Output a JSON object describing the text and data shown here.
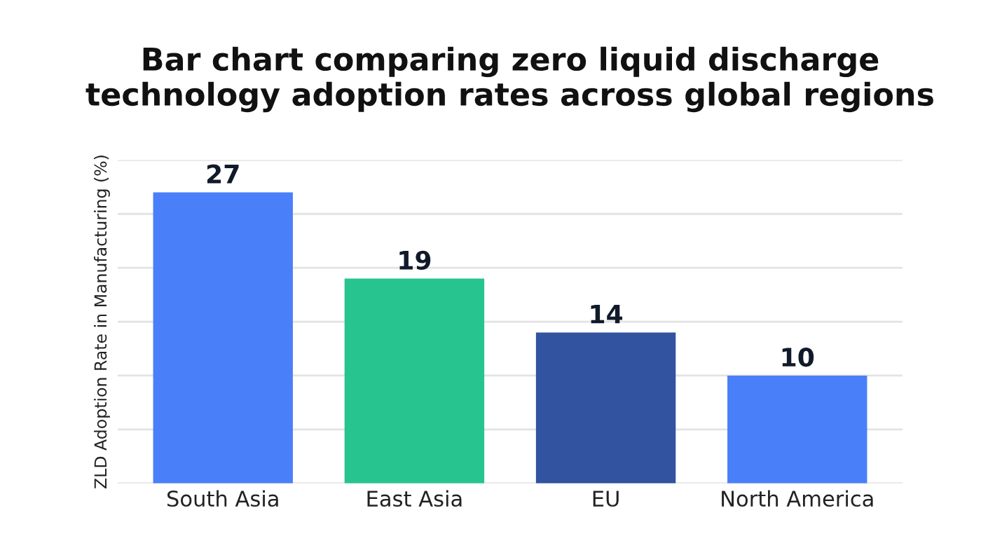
{
  "chart_data": {
    "type": "bar",
    "title": "Bar chart comparing zero liquid discharge\ntechnology adoption rates across global regions",
    "ylabel": "ZLD Adoption Rate in Manufacturing (%)",
    "categories": [
      "South Asia",
      "East Asia",
      "EU",
      "North America"
    ],
    "values": [
      27,
      19,
      14,
      10
    ],
    "colors": [
      "#4a7ffa",
      "#27c48f",
      "#3153a0",
      "#4a7ffa"
    ],
    "ylim": [
      0,
      30
    ],
    "yticks": [
      {
        "value": 0,
        "label": null
      },
      {
        "value": 5,
        "label": null
      },
      {
        "value": 10,
        "label": null
      },
      {
        "value": 15,
        "label": null
      },
      {
        "value": 20,
        "label": null
      },
      {
        "value": 25,
        "label": null
      },
      {
        "value": 30,
        "label": null
      }
    ],
    "grid": "y",
    "tick_labels": "x",
    "data_labels": true
  }
}
